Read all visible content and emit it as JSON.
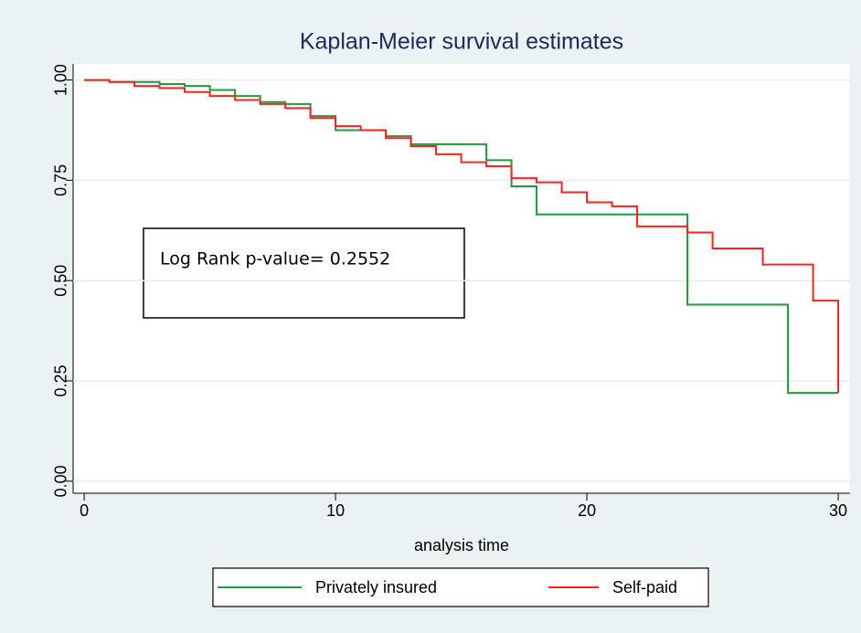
{
  "chart_data": {
    "type": "step",
    "title": "Kaplan-Meier survival estimates",
    "x_label": "analysis time",
    "annotation": "Log Rank p-value= 0.2552",
    "xlim": [
      -0.44,
      30.47
    ],
    "xticks": [
      0,
      10,
      20,
      30
    ],
    "ylim": [
      -0.03,
      1.04
    ],
    "yticks": [
      {
        "value": 0,
        "label": "0.00"
      },
      0.25,
      {
        "value": 0.5,
        "label": "0.50"
      },
      0.75,
      {
        "value": 1,
        "label": "1.00"
      }
    ],
    "grid": true,
    "legend": "bottom",
    "series": [
      {
        "name": "Privately insured",
        "color": "#1f9a3c",
        "x": [
          0,
          1,
          3,
          4,
          5,
          6,
          7,
          8,
          9,
          10,
          12,
          13,
          16,
          17,
          18,
          24,
          28,
          30
        ],
        "values": [
          1.0,
          0.995,
          0.99,
          0.985,
          0.975,
          0.96,
          0.945,
          0.94,
          0.91,
          0.875,
          0.86,
          0.84,
          0.8,
          0.735,
          0.665,
          0.44,
          0.22,
          0.22
        ]
      },
      {
        "name": "Self-paid",
        "color": "#ff2020",
        "x": [
          0,
          1,
          2,
          3,
          4,
          5,
          6,
          7,
          8,
          9,
          10,
          11,
          12,
          13,
          14,
          15,
          16,
          17,
          18,
          19,
          20,
          21,
          22,
          24,
          25,
          27,
          29,
          30
        ],
        "values": [
          1.0,
          0.995,
          0.985,
          0.98,
          0.97,
          0.96,
          0.95,
          0.94,
          0.93,
          0.905,
          0.885,
          0.875,
          0.855,
          0.835,
          0.815,
          0.795,
          0.785,
          0.755,
          0.745,
          0.72,
          0.695,
          0.685,
          0.635,
          0.62,
          0.58,
          0.54,
          0.45,
          0.22
        ]
      }
    ]
  }
}
